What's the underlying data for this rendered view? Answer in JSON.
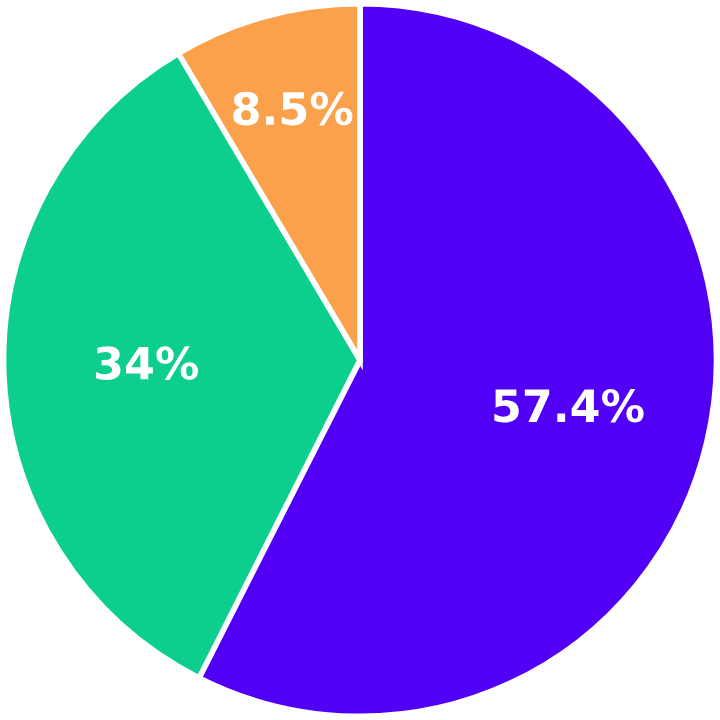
{
  "chart_data": {
    "type": "pie",
    "categories": [
      null,
      null,
      null
    ],
    "values": [
      57.4,
      34,
      8.5
    ],
    "colors": [
      "#5200f5",
      "#0ccf8f",
      "#fba14c"
    ],
    "value_labels": [
      "57.4%",
      "34%",
      "8.5%"
    ]
  }
}
